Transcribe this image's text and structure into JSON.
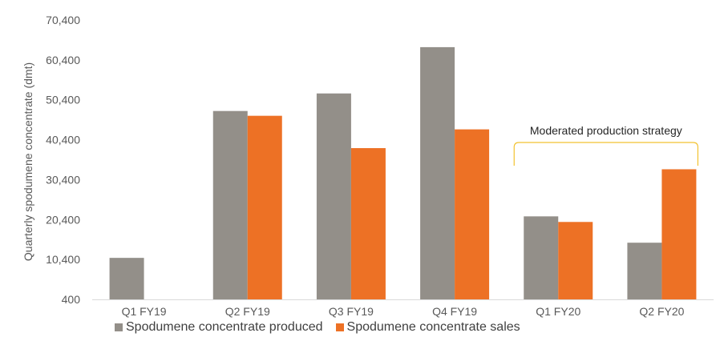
{
  "chart_data": {
    "type": "bar",
    "categories": [
      "Q1 FY19",
      "Q2 FY19",
      "Q3 FY19",
      "Q4 FY19",
      "Q1 FY20",
      "Q2 FY20"
    ],
    "series": [
      {
        "name": "Spodumene concentrate produced",
        "color": "#938f89",
        "values": [
          10800,
          47600,
          52000,
          63600,
          21200,
          14600
        ]
      },
      {
        "name": "Spodumene concentrate sales",
        "color": "#ed7125",
        "values": [
          null,
          46400,
          38300,
          43000,
          19800,
          33000
        ]
      }
    ],
    "ylabel": "Quarterly spodumene concentrate (dmt)",
    "ylim": [
      400,
      70400
    ],
    "yticks": [
      400,
      10400,
      20400,
      30400,
      40400,
      50400,
      60400,
      70400
    ],
    "ytick_labels": [
      "400",
      "10,400",
      "20,400",
      "30,400",
      "40,400",
      "50,400",
      "60,400",
      "70,400"
    ],
    "grid": false,
    "legend": "bottom",
    "annotation": {
      "text": "Moderated production strategy",
      "categories": [
        "Q1 FY20",
        "Q2 FY20"
      ],
      "bracket_color": "#f2c230"
    }
  }
}
